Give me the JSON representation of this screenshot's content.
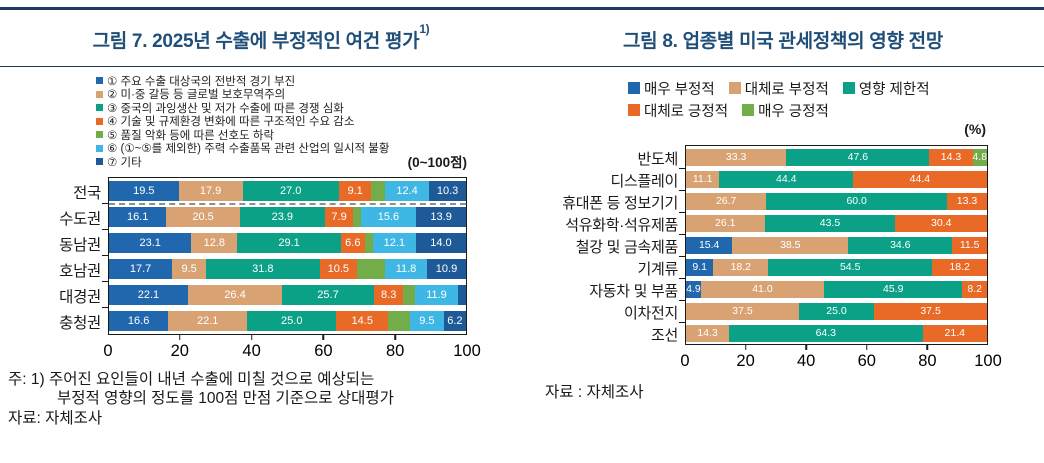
{
  "figures": {
    "fig7": {
      "title": "그림 7. 2025년 수출에 부정적인 여건 평가",
      "title_superscript": "1)",
      "scale_note": "(0~100점)",
      "footnote": {
        "note_line1": "주: 1) 주어진 요인들이 내년 수출에 미칠 것으로 예상되는",
        "note_line2": "부정적 영향의 정도를 100점 만점 기준으로 상대평가",
        "source": "자료: 자체조사"
      },
      "chart_data": {
        "type": "bar",
        "stacked": true,
        "orientation": "horizontal",
        "title": "그림 7. 2025년 수출에 부정적인 여건 평가 1)",
        "unit": "0~100점",
        "xlim": [
          0,
          100
        ],
        "xticks": [
          0,
          20,
          40,
          60,
          80,
          100
        ],
        "legend_position": "top-left-vertical",
        "separator_after_row": 0,
        "categories": [
          "전국",
          "수도권",
          "동남권",
          "호남권",
          "대경권",
          "충청권"
        ],
        "series": [
          {
            "name": "① 주요 수출 대상국의 전반적 경기 부진",
            "color": "#2167ae",
            "values": [
              19.5,
              16.1,
              23.1,
              17.7,
              22.1,
              16.6
            ],
            "labels": [
              "19.5",
              "16.1",
              "23.1",
              "17.7",
              "22.1",
              "16.6"
            ]
          },
          {
            "name": "② 미·중 갈등 등 글로벌 보호무역주의",
            "color": "#d9a272",
            "values": [
              17.9,
              20.5,
              12.8,
              9.5,
              26.4,
              22.1
            ],
            "labels": [
              "17.9",
              "20.5",
              "12.8",
              "9.5",
              "26.4",
              "22.1"
            ]
          },
          {
            "name": "③ 중국의 과잉생산 및 저가 수출에 따른 경쟁 심화",
            "color": "#0aa187",
            "values": [
              27.0,
              23.9,
              29.1,
              31.8,
              25.7,
              25.0
            ],
            "labels": [
              "27.0",
              "23.9",
              "29.1",
              "31.8",
              "25.7",
              "25.0"
            ]
          },
          {
            "name": "④ 기술 및 규제환경 변화에 따른 구조적인 수요 감소",
            "color": "#e96a26",
            "values": [
              9.1,
              7.9,
              6.6,
              10.5,
              8.3,
              14.5
            ],
            "labels": [
              "9.1",
              "7.9",
              "6.6",
              "10.5",
              "8.3",
              "14.5"
            ]
          },
          {
            "name": "⑤ 품질 악화 등에 따른 선호도 하락",
            "color": "#72ad4a",
            "values": [
              3.8,
              2.1,
              2.3,
              7.8,
              3.3,
              6.1
            ],
            "labels": [
              "",
              "",
              "",
              "",
              "",
              ""
            ]
          },
          {
            "name": "⑥ (①~⑤를 제외한) 주력 수출품목 관련 산업의 일시적 불황",
            "color": "#3fb7e5",
            "values": [
              12.4,
              15.6,
              12.1,
              11.8,
              11.9,
              9.5
            ],
            "labels": [
              "12.4",
              "15.6",
              "12.1",
              "11.8",
              "11.9",
              "9.5"
            ]
          },
          {
            "name": "⑦ 기타",
            "color": "#1e5a97",
            "values": [
              10.3,
              13.9,
              14.0,
              10.9,
              2.3,
              6.2
            ],
            "labels": [
              "10.3",
              "13.9",
              "14.0",
              "10.9",
              "",
              "6.2"
            ]
          }
        ]
      }
    },
    "fig8": {
      "title": "그림 8. 업종별 미국 관세정책의 영향 전망",
      "unit_note": "(%)",
      "footnote": {
        "source": "자료 : 자체조사"
      },
      "chart_data": {
        "type": "bar",
        "stacked": true,
        "orientation": "horizontal",
        "title": "그림 8. 업종별 미국 관세정책의 영향 전망",
        "unit": "%",
        "xlim": [
          0,
          100
        ],
        "xticks": [
          0,
          20,
          40,
          60,
          80,
          100
        ],
        "legend_position": "top",
        "categories": [
          "반도체",
          "디스플레이",
          "휴대폰 등 정보기기",
          "석유화학·석유제품",
          "철강 및 금속제품",
          "기계류",
          "자동차 및 부품",
          "이차전지",
          "조선"
        ],
        "series": [
          {
            "name": "매우 부정적",
            "color": "#2167ae",
            "values": [
              0,
              0,
              0,
              0,
              15.4,
              9.1,
              4.9,
              0,
              0
            ],
            "labels": [
              "",
              "",
              "",
              "",
              "15.4",
              "9.1",
              "4.9",
              "",
              ""
            ]
          },
          {
            "name": "대체로 부정적",
            "color": "#d9a272",
            "values": [
              33.3,
              11.1,
              26.7,
              26.1,
              38.5,
              18.2,
              41.0,
              37.5,
              14.3
            ],
            "labels": [
              "33.3",
              "11.1",
              "26.7",
              "26.1",
              "38.5",
              "18.2",
              "41.0",
              "37.5",
              "14.3"
            ]
          },
          {
            "name": "영향 제한적",
            "color": "#0aa187",
            "values": [
              47.6,
              44.4,
              60.0,
              43.5,
              34.6,
              54.5,
              45.9,
              25.0,
              64.3
            ],
            "labels": [
              "47.6",
              "44.4",
              "60.0",
              "43.5",
              "34.6",
              "54.5",
              "45.9",
              "25.0",
              "64.3"
            ]
          },
          {
            "name": "대체로 긍정적",
            "color": "#e96a26",
            "values": [
              14.3,
              44.4,
              13.3,
              30.4,
              11.5,
              18.2,
              8.2,
              37.5,
              21.4
            ],
            "labels": [
              "14.3",
              "44.4",
              "13.3",
              "30.4",
              "11.5",
              "18.2",
              "8.2",
              "37.5",
              "21.4"
            ]
          },
          {
            "name": "매우 긍정적",
            "color": "#72ad4a",
            "values": [
              4.8,
              0,
              0,
              0,
              0,
              0,
              0,
              0,
              0
            ],
            "labels": [
              "4.8",
              "",
              "",
              "",
              "",
              "",
              "",
              "",
              ""
            ]
          }
        ]
      }
    },
    "colors": {
      "accent_navy": "#1f4e79",
      "rule_navy": "#1f3864",
      "frame_border": "#1a1a1a"
    }
  }
}
